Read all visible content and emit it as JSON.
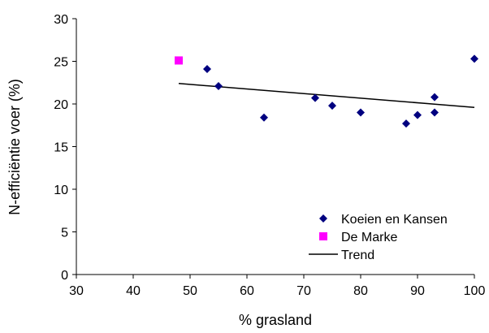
{
  "chart_data": {
    "type": "scatter",
    "xlabel": "% grasland",
    "ylabel": "N-efficiëntie voer (%)",
    "xlim": [
      30,
      100
    ],
    "ylim": [
      0,
      30
    ],
    "xticks": [
      30,
      40,
      50,
      60,
      70,
      80,
      90,
      100
    ],
    "yticks": [
      0,
      5,
      10,
      15,
      20,
      25,
      30
    ],
    "grid": false,
    "legend_position": "bottom-right",
    "series": [
      {
        "name": "Koeien en Kansen",
        "marker": "diamond",
        "color": "#000080",
        "points": [
          {
            "x": 53,
            "y": 24.1
          },
          {
            "x": 55,
            "y": 22.1
          },
          {
            "x": 63,
            "y": 18.4
          },
          {
            "x": 72,
            "y": 20.7
          },
          {
            "x": 75,
            "y": 19.8
          },
          {
            "x": 80,
            "y": 19.0
          },
          {
            "x": 88,
            "y": 17.7
          },
          {
            "x": 90,
            "y": 18.7
          },
          {
            "x": 93,
            "y": 20.8
          },
          {
            "x": 93,
            "y": 19.0
          },
          {
            "x": 100,
            "y": 25.3
          }
        ]
      },
      {
        "name": "De Marke",
        "marker": "square",
        "color": "#ff00ff",
        "points": [
          {
            "x": 48,
            "y": 25.1
          }
        ]
      },
      {
        "name": "Trend",
        "marker": "line",
        "color": "#000000",
        "points": [
          {
            "x": 48,
            "y": 22.4
          },
          {
            "x": 100,
            "y": 19.6
          }
        ]
      }
    ]
  }
}
